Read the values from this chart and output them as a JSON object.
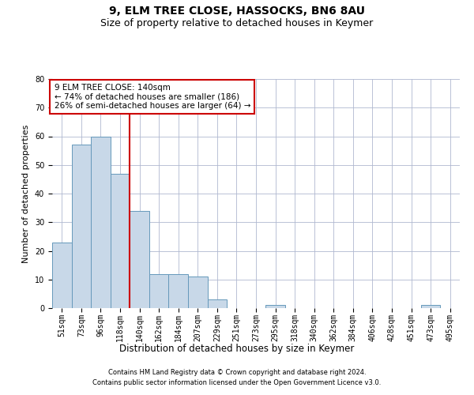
{
  "title": "9, ELM TREE CLOSE, HASSOCKS, BN6 8AU",
  "subtitle": "Size of property relative to detached houses in Keymer",
  "xlabel": "Distribution of detached houses by size in Keymer",
  "ylabel": "Number of detached properties",
  "categories": [
    "51sqm",
    "73sqm",
    "96sqm",
    "118sqm",
    "140sqm",
    "162sqm",
    "184sqm",
    "207sqm",
    "229sqm",
    "251sqm",
    "273sqm",
    "295sqm",
    "318sqm",
    "340sqm",
    "362sqm",
    "384sqm",
    "406sqm",
    "428sqm",
    "451sqm",
    "473sqm",
    "495sqm"
  ],
  "values": [
    23,
    57,
    60,
    47,
    34,
    12,
    12,
    11,
    3,
    0,
    0,
    1,
    0,
    0,
    0,
    0,
    0,
    0,
    0,
    1,
    0
  ],
  "bar_color": "#c8d8e8",
  "bar_edge_color": "#6699bb",
  "highlight_index": 4,
  "highlight_line_color": "#cc0000",
  "ylim": [
    0,
    80
  ],
  "yticks": [
    0,
    10,
    20,
    30,
    40,
    50,
    60,
    70,
    80
  ],
  "annotation_box_text": "9 ELM TREE CLOSE: 140sqm\n← 74% of detached houses are smaller (186)\n26% of semi-detached houses are larger (64) →",
  "annotation_box_color": "#cc0000",
  "footer1": "Contains HM Land Registry data © Crown copyright and database right 2024.",
  "footer2": "Contains public sector information licensed under the Open Government Licence v3.0.",
  "background_color": "#ffffff",
  "grid_color": "#b0b8d0",
  "title_fontsize": 10,
  "subtitle_fontsize": 9,
  "tick_fontsize": 7,
  "ylabel_fontsize": 8,
  "xlabel_fontsize": 8.5,
  "annotation_fontsize": 7.5,
  "footer_fontsize": 6
}
